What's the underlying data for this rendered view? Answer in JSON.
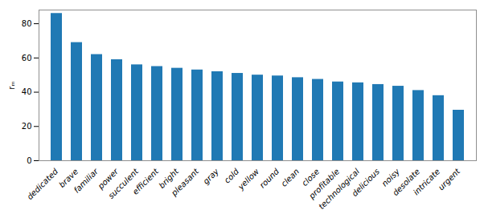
{
  "chart_data": {
    "type": "bar",
    "categories": [
      "dedicated",
      "brave",
      "familiar",
      "power",
      "succulent",
      "efficient",
      "bright",
      "pleasant",
      "gray",
      "cold",
      "yellow",
      "round",
      "clean",
      "close",
      "profitable",
      "technological",
      "delicious",
      "noisy",
      "desolate",
      "intricate",
      "urgent"
    ],
    "values": [
      86,
      69,
      62,
      59,
      56,
      55,
      54,
      53,
      52,
      51,
      50,
      49.5,
      48.5,
      47.5,
      46,
      45.5,
      44.5,
      43.5,
      41,
      38,
      29.5
    ],
    "color": "#2079b4",
    "ylabel": "rₘ",
    "ylim": [
      0,
      88
    ],
    "yticks": [
      0,
      20,
      40,
      60,
      80
    ],
    "grid": false
  }
}
